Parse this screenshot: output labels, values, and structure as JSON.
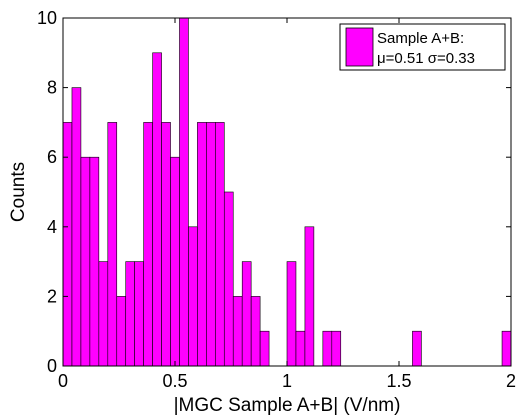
{
  "chart_data": {
    "type": "histogram",
    "xlabel": "|MGC Sample A+B| (V/nm)",
    "ylabel": "Counts",
    "xlim": [
      0,
      2
    ],
    "ylim": [
      0,
      10
    ],
    "xticks": [
      "0",
      "0.5",
      "1",
      "1.5",
      "2"
    ],
    "yticks": [
      "0",
      "2",
      "4",
      "6",
      "8",
      "10"
    ],
    "bin_width": 0.04,
    "bins": [
      {
        "x0": 0.0,
        "count": 7
      },
      {
        "x0": 0.04,
        "count": 8
      },
      {
        "x0": 0.08,
        "count": 6
      },
      {
        "x0": 0.12,
        "count": 6
      },
      {
        "x0": 0.16,
        "count": 3
      },
      {
        "x0": 0.2,
        "count": 7
      },
      {
        "x0": 0.24,
        "count": 2
      },
      {
        "x0": 0.28,
        "count": 3
      },
      {
        "x0": 0.32,
        "count": 3
      },
      {
        "x0": 0.36,
        "count": 7
      },
      {
        "x0": 0.4,
        "count": 9
      },
      {
        "x0": 0.44,
        "count": 7
      },
      {
        "x0": 0.48,
        "count": 6
      },
      {
        "x0": 0.52,
        "count": 10
      },
      {
        "x0": 0.56,
        "count": 4
      },
      {
        "x0": 0.6,
        "count": 7
      },
      {
        "x0": 0.64,
        "count": 7
      },
      {
        "x0": 0.68,
        "count": 7
      },
      {
        "x0": 0.72,
        "count": 5
      },
      {
        "x0": 0.76,
        "count": 2
      },
      {
        "x0": 0.8,
        "count": 3
      },
      {
        "x0": 0.84,
        "count": 2
      },
      {
        "x0": 0.88,
        "count": 1
      },
      {
        "x0": 0.92,
        "count": 0
      },
      {
        "x0": 0.96,
        "count": 0
      },
      {
        "x0": 1.0,
        "count": 3
      },
      {
        "x0": 1.04,
        "count": 1
      },
      {
        "x0": 1.08,
        "count": 4
      },
      {
        "x0": 1.12,
        "count": 0
      },
      {
        "x0": 1.16,
        "count": 1
      },
      {
        "x0": 1.2,
        "count": 1
      },
      {
        "x0": 1.56,
        "count": 1
      },
      {
        "x0": 1.96,
        "count": 1
      }
    ],
    "legend": {
      "placement": "top-right",
      "line1": "Sample A+B:",
      "line2": "μ=0.51  σ=0.33"
    },
    "colors": {
      "bar_fill": "#ff00ff",
      "bar_stroke": "#000000",
      "background": "#ffffff",
      "axis": "#000000"
    }
  }
}
